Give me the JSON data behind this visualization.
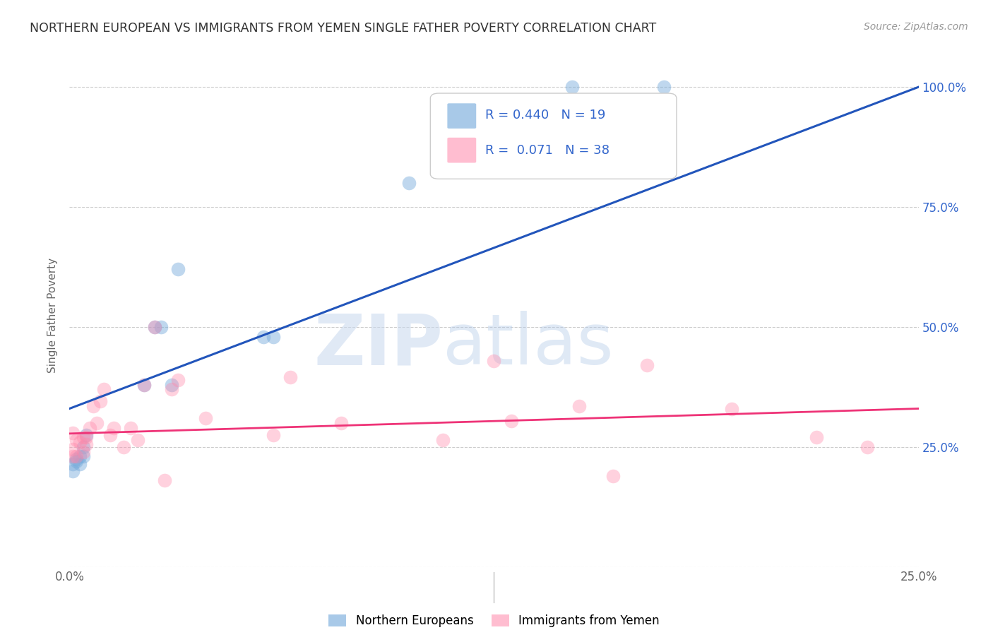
{
  "title": "NORTHERN EUROPEAN VS IMMIGRANTS FROM YEMEN SINGLE FATHER POVERTY CORRELATION CHART",
  "source": "Source: ZipAtlas.com",
  "ylabel": "Single Father Poverty",
  "legend_blue_R": "0.440",
  "legend_blue_N": "19",
  "legend_pink_R": "0.071",
  "legend_pink_N": "38",
  "blue_scatter_x": [
    0.001,
    0.001,
    0.002,
    0.002,
    0.003,
    0.003,
    0.004,
    0.004,
    0.005,
    0.022,
    0.025,
    0.027,
    0.03,
    0.032,
    0.057,
    0.06,
    0.1,
    0.148,
    0.175
  ],
  "blue_scatter_y": [
    0.2,
    0.215,
    0.22,
    0.225,
    0.215,
    0.23,
    0.23,
    0.25,
    0.275,
    0.38,
    0.5,
    0.5,
    0.38,
    0.62,
    0.48,
    0.48,
    0.8,
    1.0,
    1.0
  ],
  "pink_scatter_x": [
    0.001,
    0.001,
    0.001,
    0.002,
    0.002,
    0.003,
    0.004,
    0.004,
    0.005,
    0.005,
    0.006,
    0.007,
    0.008,
    0.009,
    0.01,
    0.012,
    0.013,
    0.016,
    0.018,
    0.02,
    0.022,
    0.025,
    0.028,
    0.03,
    0.032,
    0.04,
    0.06,
    0.065,
    0.08,
    0.11,
    0.125,
    0.13,
    0.15,
    0.16,
    0.17,
    0.195,
    0.22,
    0.235
  ],
  "pink_scatter_y": [
    0.23,
    0.245,
    0.28,
    0.23,
    0.265,
    0.26,
    0.24,
    0.27,
    0.255,
    0.27,
    0.29,
    0.335,
    0.3,
    0.345,
    0.37,
    0.275,
    0.29,
    0.25,
    0.29,
    0.265,
    0.38,
    0.5,
    0.18,
    0.37,
    0.39,
    0.31,
    0.275,
    0.395,
    0.3,
    0.265,
    0.43,
    0.305,
    0.335,
    0.19,
    0.42,
    0.33,
    0.27,
    0.25
  ],
  "blue_line_x": [
    0.0,
    0.25
  ],
  "blue_line_y": [
    0.33,
    1.0
  ],
  "pink_line_x": [
    0.0,
    0.25
  ],
  "pink_line_y": [
    0.278,
    0.33
  ],
  "watermark_zip": "ZIP",
  "watermark_atlas": "atlas",
  "blue_color": "#7AADDC",
  "pink_color": "#FF88AA",
  "blue_line_color": "#2255BB",
  "pink_line_color": "#EE3377",
  "background_color": "#FFFFFF",
  "grid_color": "#CCCCCC",
  "right_axis_color": "#3366CC",
  "xlim": [
    0.0,
    0.25
  ],
  "ylim": [
    0.0,
    1.05
  ],
  "right_yticks": [
    1.0,
    0.75,
    0.5,
    0.25
  ],
  "right_yticklabels": [
    "100.0%",
    "75.0%",
    "50.0%",
    "25.0%"
  ],
  "xtick_labels": [
    "0.0%",
    "25.0%"
  ],
  "xtick_vals": [
    0.0,
    0.25
  ],
  "legend_items": [
    "Northern Europeans",
    "Immigrants from Yemen"
  ],
  "scatter_size": 200,
  "blue_alpha": 0.48,
  "pink_alpha": 0.38
}
